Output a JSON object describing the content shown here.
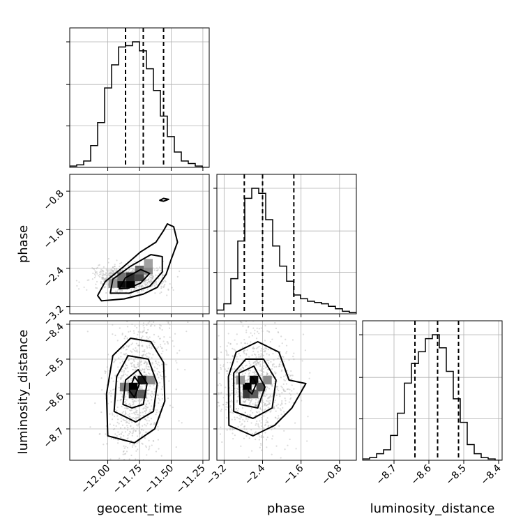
{
  "chart_data": {
    "type": "corner",
    "grid": true,
    "colors": {
      "hist": "#000000",
      "quantile": "#000000",
      "scatter": "#b0b0b0",
      "grid": "#b0b0b0"
    },
    "params": [
      "geocent_time",
      "phase",
      "luminosity_distance"
    ],
    "axis_labels": {
      "geocent_time": "geocent_time",
      "phase": "phase",
      "luminosity_distance": "luminosity_distance"
    },
    "ranges": {
      "geocent_time": [
        -12.3,
        -11.2
      ],
      "phase": [
        -3.35,
        -0.45
      ],
      "luminosity_distance": [
        -8.79,
        -8.39
      ]
    },
    "ticks": {
      "geocent_time": [
        -12.0,
        -11.75,
        -11.5,
        -11.25
      ],
      "phase": [
        -3.2,
        -2.4,
        -1.6,
        -0.8
      ],
      "luminosity_distance": [
        -8.7,
        -8.6,
        -8.5,
        -8.4
      ]
    },
    "tick_labels": {
      "geocent_time": [
        "−12.00",
        "−11.75",
        "−11.50",
        "−11.25"
      ],
      "phase": [
        "−3.2",
        "−2.4",
        "−1.6",
        "−0.8"
      ],
      "luminosity_distance": [
        "−8.7",
        "−8.6",
        "−8.5",
        "−8.4"
      ]
    },
    "histograms": {
      "geocent_time": {
        "bin_edges": [
          -12.3,
          -12.245,
          -12.19,
          -12.135,
          -12.08,
          -12.025,
          -11.97,
          -11.915,
          -11.86,
          -11.805,
          -11.75,
          -11.695,
          -11.64,
          -11.585,
          -11.53,
          -11.475,
          -11.42,
          -11.365,
          -11.31,
          -11.255,
          -11.2
        ],
        "counts": [
          1,
          2,
          5,
          17,
          35,
          62,
          80,
          94,
          95,
          98,
          91,
          77,
          60,
          40,
          24,
          12,
          5,
          3,
          1,
          0
        ],
        "quantiles": [
          -11.86,
          -11.72,
          -11.56
        ]
      },
      "phase": {
        "bin_edges": [
          -3.35,
          -3.205,
          -3.06,
          -2.915,
          -2.77,
          -2.625,
          -2.48,
          -2.335,
          -2.19,
          -2.045,
          -1.9,
          -1.755,
          -1.61,
          -1.465,
          -1.32,
          -1.175,
          -1.03,
          -0.885,
          -0.74,
          -0.595,
          -0.45
        ],
        "counts": [
          3,
          8,
          28,
          58,
          92,
          100,
          96,
          75,
          54,
          38,
          26,
          15,
          12,
          10,
          9,
          8,
          6,
          4,
          2,
          1
        ],
        "quantiles": [
          -2.78,
          -2.4,
          -1.75
        ]
      },
      "luminosity_distance": {
        "bin_edges": [
          -8.79,
          -8.77,
          -8.75,
          -8.73,
          -8.71,
          -8.69,
          -8.67,
          -8.65,
          -8.63,
          -8.61,
          -8.59,
          -8.57,
          -8.55,
          -8.53,
          -8.51,
          -8.49,
          -8.47,
          -8.45,
          -8.43,
          -8.41,
          -8.39
        ],
        "counts": [
          1,
          2,
          5,
          8,
          19,
          36,
          59,
          74,
          83,
          93,
          96,
          86,
          68,
          47,
          29,
          12,
          5,
          2,
          1,
          0
        ],
        "quantiles": [
          -8.64,
          -8.575,
          -8.515
        ]
      }
    },
    "pairs": [
      {
        "x": "geocent_time",
        "y": "phase",
        "center": [
          -11.84,
          -2.62
        ],
        "axis1": [
          0.56,
          0.83
        ],
        "s1": 0.13,
        "s2": 0.13,
        "contours": [
          [
            [
              -12.05,
              -3.08
            ],
            [
              -12.08,
              -2.97
            ],
            [
              -12.02,
              -2.68
            ],
            [
              -11.88,
              -2.38
            ],
            [
              -11.74,
              -2.06
            ],
            [
              -11.62,
              -1.86
            ],
            [
              -11.56,
              -1.62
            ],
            [
              -11.53,
              -1.48
            ],
            [
              -11.48,
              -1.54
            ],
            [
              -11.45,
              -1.86
            ],
            [
              -11.5,
              -2.22
            ],
            [
              -11.54,
              -2.53
            ],
            [
              -11.61,
              -2.8
            ],
            [
              -11.72,
              -2.94
            ],
            [
              -11.87,
              -3.04
            ]
          ],
          [
            [
              -11.98,
              -2.92
            ],
            [
              -11.96,
              -2.63
            ],
            [
              -11.82,
              -2.36
            ],
            [
              -11.66,
              -2.12
            ],
            [
              -11.57,
              -2.16
            ],
            [
              -11.57,
              -2.48
            ],
            [
              -11.67,
              -2.78
            ],
            [
              -11.83,
              -2.92
            ]
          ],
          [
            [
              -11.91,
              -2.83
            ],
            [
              -11.86,
              -2.6
            ],
            [
              -11.74,
              -2.43
            ],
            [
              -11.67,
              -2.51
            ],
            [
              -11.74,
              -2.71
            ],
            [
              -11.84,
              -2.82
            ]
          ],
          [
            [
              -11.59,
              -0.99
            ],
            [
              -11.56,
              -0.95
            ],
            [
              -11.52,
              -0.97
            ],
            [
              -11.56,
              -1.01
            ]
          ]
        ],
        "cells": [
          {
            "x": -11.82,
            "y": -2.72,
            "density": 1.0
          },
          {
            "x": -11.89,
            "y": -2.72,
            "density": 0.95
          },
          {
            "x": -11.82,
            "y": -2.58,
            "density": 0.8
          },
          {
            "x": -11.75,
            "y": -2.58,
            "density": 0.7
          },
          {
            "x": -11.75,
            "y": -2.44,
            "density": 0.55
          },
          {
            "x": -11.68,
            "y": -2.44,
            "density": 0.4
          },
          {
            "x": -11.89,
            "y": -2.58,
            "density": 0.5
          },
          {
            "x": -11.96,
            "y": -2.72,
            "density": 0.35
          },
          {
            "x": -11.68,
            "y": -2.3,
            "density": 0.3
          }
        ]
      },
      {
        "x": "geocent_time",
        "y": "luminosity_distance",
        "center": [
          -11.76,
          -8.58
        ],
        "axis1": [
          0.72,
          0.69
        ],
        "s1": 0.14,
        "s2": 0.1,
        "contours": [
          [
            [
              -12.0,
              -8.72
            ],
            [
              -12.01,
              -8.6
            ],
            [
              -11.96,
              -8.49
            ],
            [
              -11.82,
              -8.44
            ],
            [
              -11.66,
              -8.45
            ],
            [
              -11.56,
              -8.51
            ],
            [
              -11.55,
              -8.62
            ],
            [
              -11.63,
              -8.7
            ],
            [
              -11.79,
              -8.74
            ]
          ],
          [
            [
              -11.95,
              -8.65
            ],
            [
              -11.93,
              -8.55
            ],
            [
              -11.84,
              -8.49
            ],
            [
              -11.68,
              -8.5
            ],
            [
              -11.61,
              -8.57
            ],
            [
              -11.64,
              -8.65
            ],
            [
              -11.78,
              -8.68
            ]
          ],
          [
            [
              -11.88,
              -8.63
            ],
            [
              -11.86,
              -8.56
            ],
            [
              -11.76,
              -8.53
            ],
            [
              -11.69,
              -8.57
            ],
            [
              -11.72,
              -8.63
            ],
            [
              -11.81,
              -8.64
            ]
          ],
          [
            [
              -11.83,
              -8.59
            ],
            [
              -11.79,
              -8.55
            ],
            [
              -11.75,
              -8.57
            ],
            [
              -11.79,
              -8.61
            ]
          ]
        ],
        "cells": [
          {
            "x": -11.8,
            "y": -8.58,
            "density": 1.0
          },
          {
            "x": -11.73,
            "y": -8.56,
            "density": 0.9
          },
          {
            "x": -11.8,
            "y": -8.6,
            "density": 0.8
          },
          {
            "x": -11.73,
            "y": -8.6,
            "density": 0.6
          },
          {
            "x": -11.87,
            "y": -8.58,
            "density": 0.45
          },
          {
            "x": -11.66,
            "y": -8.56,
            "density": 0.4
          }
        ]
      },
      {
        "x": "phase",
        "y": "luminosity_distance",
        "center": [
          -2.55,
          -8.58
        ],
        "axis1": [
          1,
          0
        ],
        "s1": 0.4,
        "s2": 0.08,
        "contours": [
          [
            [
              -3.1,
              -8.69
            ],
            [
              -3.11,
              -8.55
            ],
            [
              -2.95,
              -8.48
            ],
            [
              -2.5,
              -8.45
            ],
            [
              -2.06,
              -8.48
            ],
            [
              -1.85,
              -8.56
            ],
            [
              -1.5,
              -8.57
            ],
            [
              -1.79,
              -8.64
            ],
            [
              -2.15,
              -8.69
            ],
            [
              -2.6,
              -8.72
            ]
          ],
          [
            [
              -3.0,
              -8.65
            ],
            [
              -3.0,
              -8.54
            ],
            [
              -2.75,
              -8.5
            ],
            [
              -2.38,
              -8.5
            ],
            [
              -2.12,
              -8.56
            ],
            [
              -2.2,
              -8.64
            ],
            [
              -2.6,
              -8.67
            ]
          ],
          [
            [
              -2.87,
              -8.63
            ],
            [
              -2.89,
              -8.54
            ],
            [
              -2.58,
              -8.52
            ],
            [
              -2.35,
              -8.58
            ],
            [
              -2.5,
              -8.64
            ]
          ],
          [
            [
              -2.7,
              -8.59
            ],
            [
              -2.62,
              -8.55
            ],
            [
              -2.53,
              -8.57
            ],
            [
              -2.62,
              -8.6
            ]
          ]
        ],
        "cells": [
          {
            "x": -2.72,
            "y": -8.58,
            "density": 1.0
          },
          {
            "x": -2.58,
            "y": -8.56,
            "density": 0.95
          },
          {
            "x": -2.72,
            "y": -8.6,
            "density": 0.75
          },
          {
            "x": -2.44,
            "y": -8.58,
            "density": 0.65
          },
          {
            "x": -2.58,
            "y": -8.6,
            "density": 0.6
          },
          {
            "x": -2.3,
            "y": -8.56,
            "density": 0.4
          },
          {
            "x": -2.86,
            "y": -8.56,
            "density": 0.35
          }
        ]
      }
    ]
  }
}
